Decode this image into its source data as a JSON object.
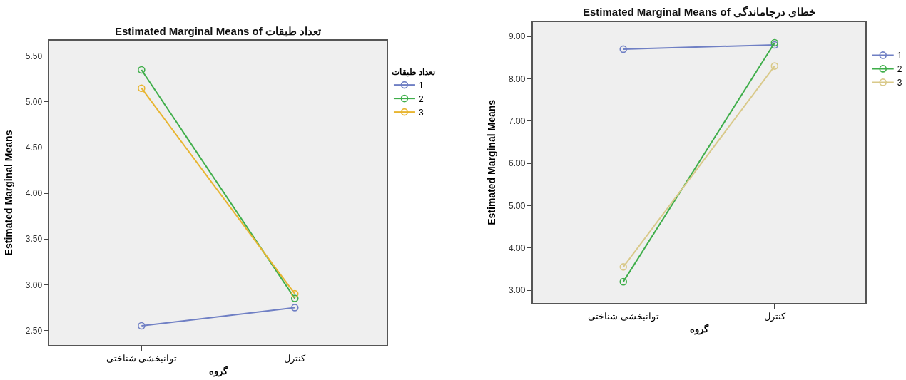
{
  "chart_data": [
    {
      "type": "line",
      "title": "Estimated Marginal Means of تعداد طبقات",
      "xlabel": "گروه",
      "ylabel": "Estimated Marginal Means",
      "legend_title": "تعداد طبقات",
      "categories": [
        "توانبخشی شناختی",
        "کنترل"
      ],
      "series": [
        {
          "name": "1",
          "color": "#6f7fc4",
          "values": [
            2.55,
            2.75
          ]
        },
        {
          "name": "2",
          "color": "#3fae4a",
          "values": [
            5.35,
            2.85
          ]
        },
        {
          "name": "3",
          "color": "#e8b530",
          "values": [
            5.15,
            2.9
          ]
        }
      ],
      "ylim": [
        2.34,
        5.67
      ],
      "yticks": [
        {
          "value": 2.5,
          "label": "2.50"
        },
        {
          "value": 3.0,
          "label": "3.00"
        },
        {
          "value": 3.5,
          "label": "3.50"
        },
        {
          "value": 4.0,
          "label": "4.00"
        },
        {
          "value": 4.5,
          "label": "4.50"
        },
        {
          "value": 5.0,
          "label": "5.00"
        },
        {
          "value": 5.5,
          "label": "5.50"
        }
      ],
      "marker": "circle",
      "line_style": "solid",
      "grid": false,
      "legend": "top right"
    },
    {
      "type": "line",
      "title": "Estimated Marginal Means of خطای درجاماندگی",
      "xlabel": "گروه",
      "ylabel": "Estimated Marginal Means",
      "categories": [
        "توانبخشی شناختی",
        "کنترل"
      ],
      "series": [
        {
          "name": "1",
          "color": "#6f7fc4",
          "values": [
            8.7,
            8.8
          ]
        },
        {
          "name": "2",
          "color": "#3fae4a",
          "values": [
            3.2,
            8.85
          ]
        },
        {
          "name": "3",
          "color": "#d9c98a",
          "values": [
            3.55,
            8.3
          ]
        }
      ],
      "ylim": [
        2.7,
        9.34
      ],
      "yticks": [
        {
          "value": 3,
          "label": "3.00"
        },
        {
          "value": 4,
          "label": "4.00"
        },
        {
          "value": 5,
          "label": "5.00"
        },
        {
          "value": 6,
          "label": "6.00"
        },
        {
          "value": 7,
          "label": "7.00"
        },
        {
          "value": 8,
          "label": "8.00"
        },
        {
          "value": 9,
          "label": "9.00"
        }
      ],
      "marker": "circle",
      "line_style": "solid",
      "grid": false,
      "legend": "top right"
    }
  ]
}
